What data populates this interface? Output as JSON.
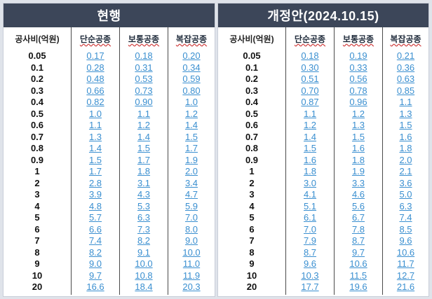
{
  "panels": [
    {
      "title": "현행",
      "columns": [
        "공사비(억원)",
        "단순공종",
        "보통공종",
        "복잡공종"
      ],
      "costs": [
        "0.05",
        "0.1",
        "0.2",
        "0.3",
        "0.4",
        "0.5",
        "0.6",
        "0.7",
        "0.8",
        "0.9",
        "1",
        "2",
        "3",
        "4",
        "5",
        "6",
        "7",
        "8",
        "9",
        "10",
        "20"
      ],
      "simple": [
        "0.17",
        "0.28",
        "0.48",
        "0.66",
        "0.82",
        "1.0",
        "1.1",
        "1.3",
        "1.4",
        "1.5",
        "1.7",
        "2.8",
        "3.9",
        "4.8",
        "5.7",
        "6.6",
        "7.4",
        "8.2",
        "9.0",
        "9.7",
        "16.6"
      ],
      "normal": [
        "0.18",
        "0.31",
        "0.53",
        "0.73",
        "0.90",
        "1.1",
        "1.2",
        "1.4",
        "1.5",
        "1.7",
        "1.8",
        "3.1",
        "4.3",
        "5.3",
        "6.3",
        "7.3",
        "8.2",
        "9.1",
        "10.0",
        "10.8",
        "18.4"
      ],
      "complex": [
        "0.20",
        "0.34",
        "0.59",
        "0.80",
        "1.0",
        "1.2",
        "1.4",
        "1.5",
        "1.7",
        "1.9",
        "2.0",
        "3.4",
        "4.7",
        "5.9",
        "7.0",
        "8.0",
        "9.0",
        "10.0",
        "11.0",
        "11.9",
        "20.3"
      ]
    },
    {
      "title": "개정안(2024.10.15)",
      "columns": [
        "공사비(억원)",
        "단순공종",
        "보통공종",
        "복잡공종"
      ],
      "costs": [
        "0.05",
        "0.1",
        "0.2",
        "0.3",
        "0.4",
        "0.5",
        "0.6",
        "0.7",
        "0.8",
        "0.9",
        "1",
        "2",
        "3",
        "4",
        "5",
        "6",
        "7",
        "8",
        "9",
        "10",
        "20"
      ],
      "simple": [
        "0.18",
        "0.30",
        "0.51",
        "0.70",
        "0.87",
        "1.1",
        "1.2",
        "1.4",
        "1.5",
        "1.6",
        "1.8",
        "3.0",
        "4.1",
        "5.1",
        "6.1",
        "7.0",
        "7.9",
        "8.7",
        "9.6",
        "10.3",
        "17.7"
      ],
      "normal": [
        "0.19",
        "0.33",
        "0.56",
        "0.78",
        "0.96",
        "1.2",
        "1.3",
        "1.5",
        "1.6",
        "1.8",
        "1.9",
        "3.3",
        "4.6",
        "5.6",
        "6.7",
        "7.8",
        "8.7",
        "9.7",
        "10.6",
        "11.5",
        "19.6"
      ],
      "complex": [
        "0.21",
        "0.36",
        "0.63",
        "0.85",
        "1.1",
        "1.3",
        "1.5",
        "1.6",
        "1.8",
        "2.0",
        "2.1",
        "3.6",
        "5.0",
        "6.3",
        "7.4",
        "8.5",
        "9.6",
        "10.6",
        "11.7",
        "12.7",
        "21.6"
      ]
    }
  ]
}
